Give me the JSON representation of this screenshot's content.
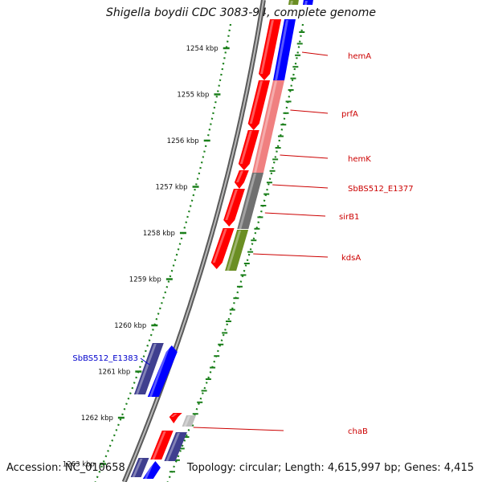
{
  "title": "Shigella boydii CDC 3083-94, complete genome",
  "footer": {
    "accession": "Accession: NC_010658",
    "summary": "Topology: circular; Length: 4,615,997 bp; Genes: 4,415"
  },
  "colors": {
    "forward_strand": "#ff0000",
    "forward_pale": "#f08080",
    "reverse_strand": "#0000ff",
    "reverse_dark": "#3f3f8f",
    "gray_gene": "#707070",
    "light_gray_gene": "#bdbdbd",
    "olive_gene": "#6b8e23",
    "tick_green": "#1a7f1a",
    "label_red": "#cc0000",
    "label_blue": "#0000cc"
  },
  "ticks": [
    {
      "label": "1254 kbp",
      "kbp": 1254
    },
    {
      "label": "1255 kbp",
      "kbp": 1255
    },
    {
      "label": "1256 kbp",
      "kbp": 1256
    },
    {
      "label": "1257 kbp",
      "kbp": 1257
    },
    {
      "label": "1258 kbp",
      "kbp": 1258
    },
    {
      "label": "1259 kbp",
      "kbp": 1259
    },
    {
      "label": "1260 kbp",
      "kbp": 1260
    },
    {
      "label": "1261 kbp",
      "kbp": 1261
    },
    {
      "label": "1262 kbp",
      "kbp": 1262
    },
    {
      "label": "1263 kbp",
      "kbp": 1263
    }
  ],
  "gene_labels": [
    {
      "name": "hemA",
      "strand": "forward"
    },
    {
      "name": "prfA",
      "strand": "forward"
    },
    {
      "name": "hemK",
      "strand": "forward"
    },
    {
      "name": "SbBS512_E1377",
      "strand": "forward"
    },
    {
      "name": "sirB1",
      "strand": "forward"
    },
    {
      "name": "kdsA",
      "strand": "forward"
    },
    {
      "name": "SbBS512_E1383",
      "strand": "reverse"
    },
    {
      "name": "chaB",
      "strand": "forward"
    }
  ]
}
